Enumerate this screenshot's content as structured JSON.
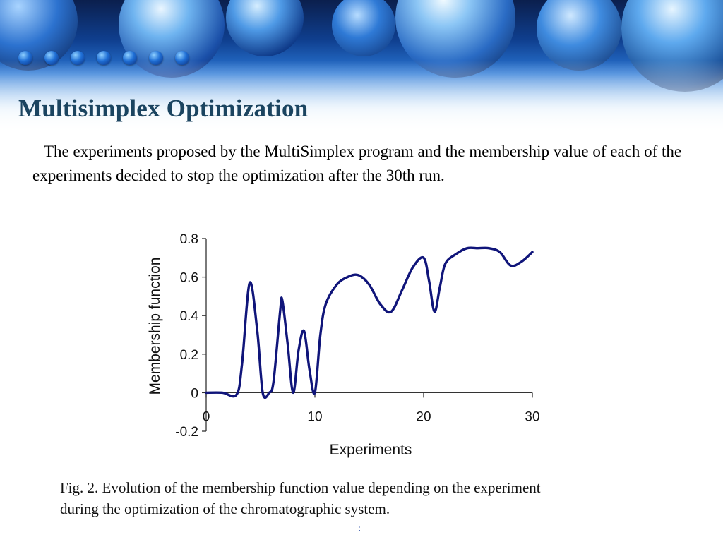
{
  "slide": {
    "title": "Multisimplex Optimization",
    "body": "The experiments proposed by the MultiSimplex program and the membership value of each of the experiments decided to stop the optimization after the 30th run.",
    "caption_line1": "Fig. 2.  Evolution of the membership function value depending on the experiment",
    "caption_line2": "during the optimization of the chromatographic system.",
    "footer_mark": ":"
  },
  "colors": {
    "title": "#1b4460",
    "line": "#10157a",
    "banner_accent": "#1f6fd6"
  },
  "decor": {
    "banner_image": "blue-molecule-spheres"
  },
  "chart_data": {
    "type": "line",
    "title": "",
    "xlabel": "Experiments",
    "ylabel": "Membership function",
    "xlim": [
      0,
      30
    ],
    "ylim": [
      -0.2,
      0.8
    ],
    "x_ticks": [
      "0",
      "10",
      "20",
      "30"
    ],
    "y_ticks": [
      "0.8",
      "0.6",
      "0.4",
      "0.2",
      "0",
      "-0.2"
    ],
    "grid": false,
    "series": [
      {
        "name": "",
        "x": [
          0,
          1.5,
          2.8,
          3.3,
          4.0,
          4.7,
          5.2,
          5.8,
          6.2,
          6.8,
          7.0,
          7.5,
          8.0,
          8.5,
          9.0,
          9.5,
          10.0,
          10.5,
          11.0,
          12.0,
          13.0,
          14.0,
          15.0,
          16.0,
          17.0,
          18.0,
          19.0,
          20.0,
          20.5,
          21.0,
          21.5,
          22.0,
          23.0,
          24.0,
          25.0,
          26.0,
          27.0,
          28.0,
          29.0,
          30.0
        ],
        "values": [
          0,
          0,
          -0.01,
          0.15,
          0.57,
          0.32,
          0.0,
          0.0,
          0.06,
          0.42,
          0.48,
          0.25,
          0.0,
          0.22,
          0.32,
          0.12,
          0.0,
          0.3,
          0.46,
          0.56,
          0.6,
          0.61,
          0.56,
          0.46,
          0.42,
          0.53,
          0.65,
          0.7,
          0.58,
          0.42,
          0.55,
          0.67,
          0.72,
          0.75,
          0.75,
          0.75,
          0.73,
          0.66,
          0.68,
          0.73
        ]
      }
    ]
  }
}
